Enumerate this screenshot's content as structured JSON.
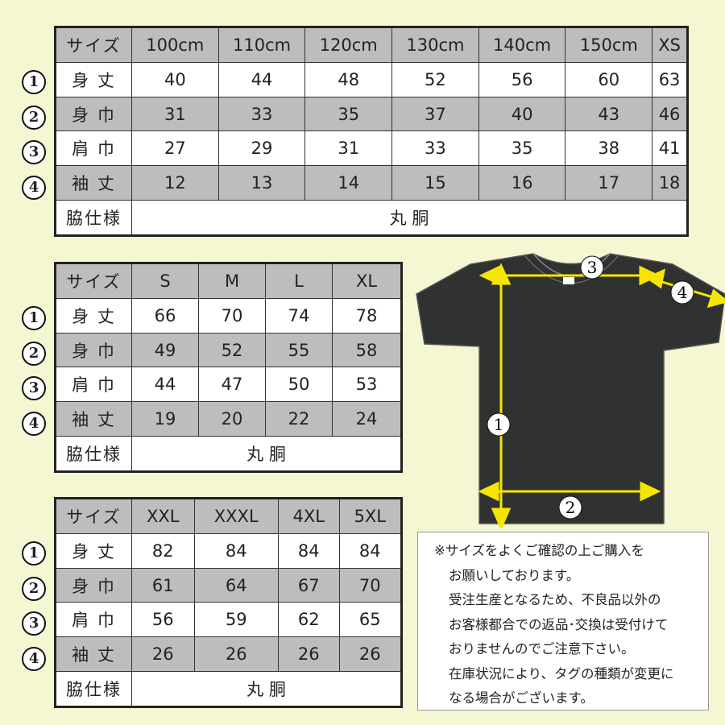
{
  "markers": [
    "1",
    "2",
    "3",
    "4"
  ],
  "tables": [
    {
      "header": [
        "サイズ",
        "100cm",
        "110cm",
        "120cm",
        "130cm",
        "140cm",
        "150cm",
        "XS"
      ],
      "rows": [
        {
          "label": "身 丈",
          "values": [
            "40",
            "44",
            "48",
            "52",
            "56",
            "60",
            "63"
          ]
        },
        {
          "label": "身 巾",
          "values": [
            "31",
            "33",
            "35",
            "37",
            "40",
            "43",
            "46"
          ]
        },
        {
          "label": "肩 巾",
          "values": [
            "27",
            "29",
            "31",
            "33",
            "35",
            "38",
            "41"
          ]
        },
        {
          "label": "袖 丈",
          "values": [
            "12",
            "13",
            "14",
            "15",
            "16",
            "17",
            "18"
          ]
        }
      ],
      "side_label": "脇仕様",
      "side_value": "丸 胴"
    },
    {
      "header": [
        "サイズ",
        "S",
        "M",
        "L",
        "XL"
      ],
      "rows": [
        {
          "label": "身 丈",
          "values": [
            "66",
            "70",
            "74",
            "78"
          ]
        },
        {
          "label": "身 巾",
          "values": [
            "49",
            "52",
            "55",
            "58"
          ]
        },
        {
          "label": "肩 巾",
          "values": [
            "44",
            "47",
            "50",
            "53"
          ]
        },
        {
          "label": "袖 丈",
          "values": [
            "19",
            "20",
            "22",
            "24"
          ]
        }
      ],
      "side_label": "脇仕様",
      "side_value": "丸 胴"
    },
    {
      "header": [
        "サイズ",
        "XXL",
        "XXXL",
        "4XL",
        "5XL"
      ],
      "rows": [
        {
          "label": "身 丈",
          "values": [
            "82",
            "84",
            "84",
            "84"
          ]
        },
        {
          "label": "身 巾",
          "values": [
            "61",
            "64",
            "67",
            "70"
          ]
        },
        {
          "label": "肩 巾",
          "values": [
            "56",
            "59",
            "62",
            "65"
          ]
        },
        {
          "label": "袖 丈",
          "values": [
            "26",
            "26",
            "26",
            "26"
          ]
        }
      ],
      "side_label": "脇仕様",
      "side_value": "丸 胴"
    }
  ],
  "diagram": {
    "labels": [
      "1",
      "2",
      "3",
      "4"
    ],
    "shirt_color": "#2f3230",
    "arrow_color": "#f5e600"
  },
  "note": [
    "※サイズをよくご確認の上ご購入を",
    "お願いしております。",
    "受注生産となるため、不良品以外の",
    "お客様都合での返品･交換は受付けて",
    "おりませんのでご注意下さい。",
    "在庫状況により、タグの種類が変更に",
    "なる場合がございます。"
  ]
}
